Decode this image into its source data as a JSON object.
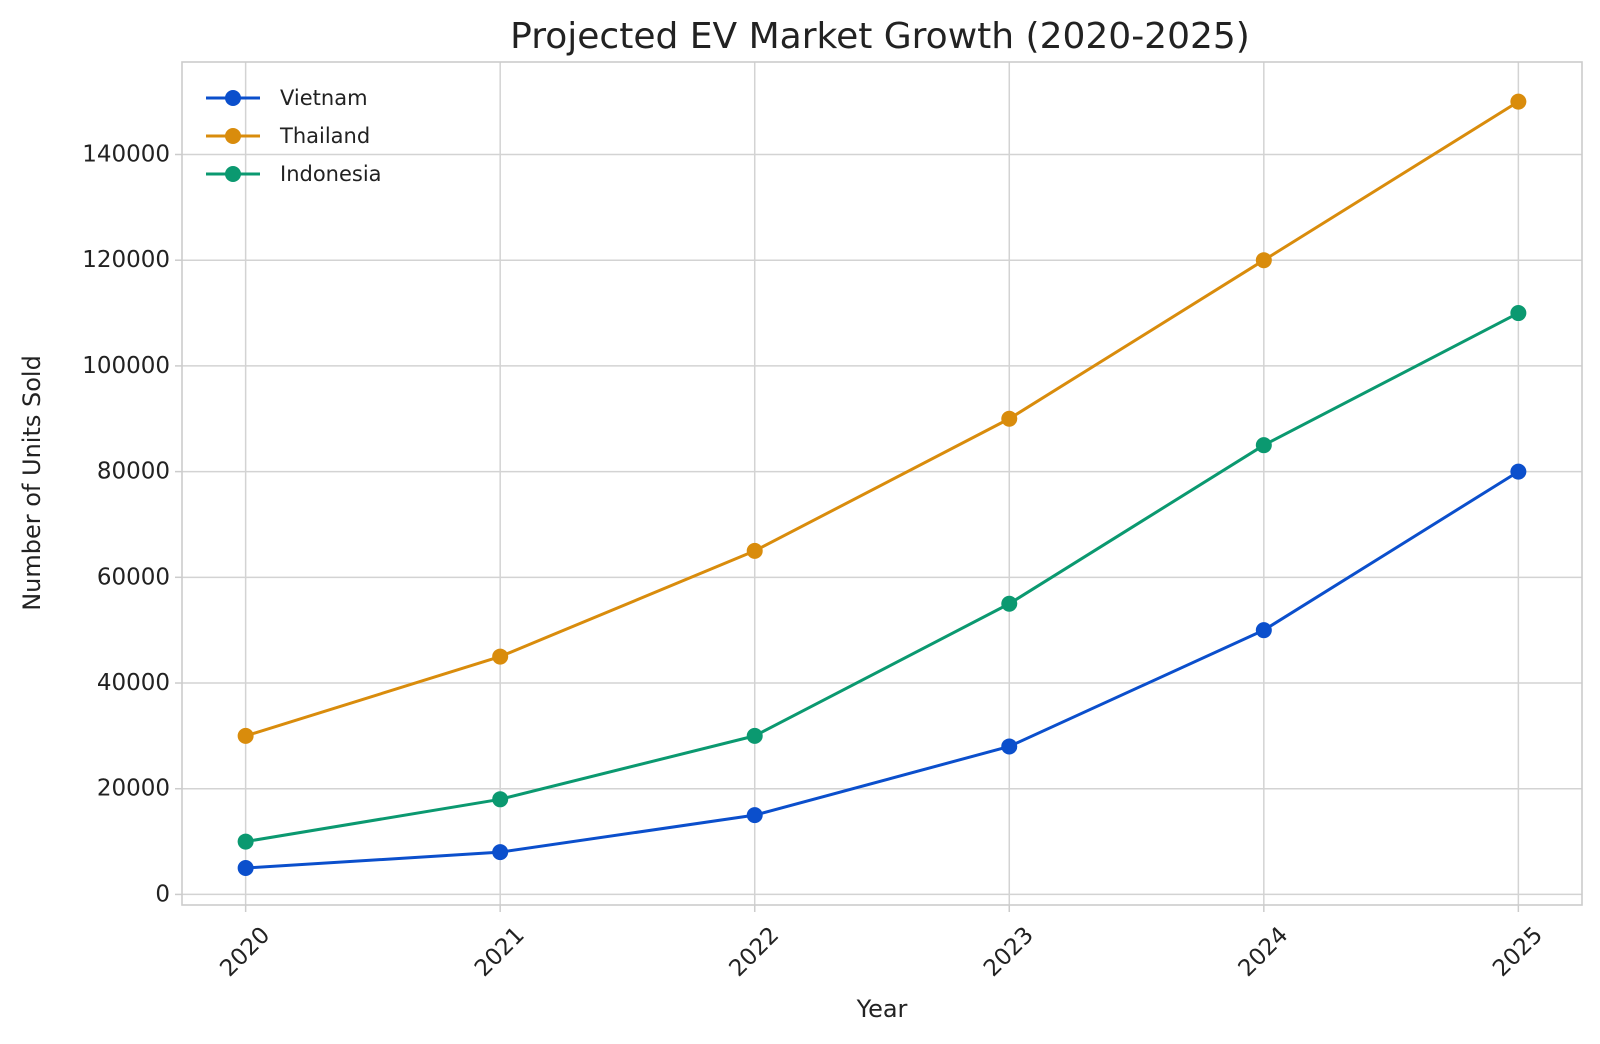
{
  "chart_data": {
    "type": "line",
    "title": "Projected EV Market Growth (2020-2025)",
    "xlabel": "Year",
    "ylabel": "Number of Units Sold",
    "x": [
      "2020",
      "2021",
      "2022",
      "2023",
      "2024",
      "2025"
    ],
    "series": [
      {
        "name": "Vietnam",
        "color": "#0b4fcc",
        "values": [
          5000,
          8000,
          15000,
          28000,
          50000,
          80000
        ]
      },
      {
        "name": "Thailand",
        "color": "#d98c0c",
        "values": [
          30000,
          45000,
          65000,
          90000,
          120000,
          150000
        ]
      },
      {
        "name": "Indonesia",
        "color": "#0b9970",
        "values": [
          10000,
          18000,
          30000,
          55000,
          85000,
          110000
        ]
      }
    ],
    "yticks": [
      0,
      20000,
      40000,
      60000,
      80000,
      100000,
      120000,
      140000
    ],
    "ylim": [
      -2000,
      157500
    ],
    "xlim": [
      -0.25,
      5.25
    ],
    "grid": true,
    "legend_position": "top-left",
    "x_tick_rotation_deg": 45
  }
}
